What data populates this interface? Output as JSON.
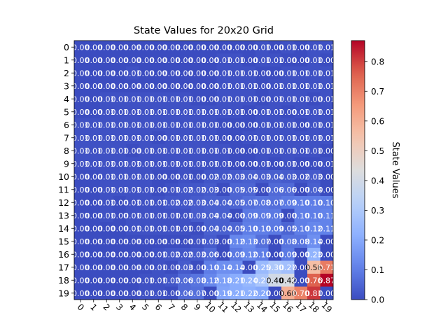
{
  "chart_data": {
    "type": "heatmap",
    "title": "State Values for 20x20 Grid",
    "xlabel": "",
    "ylabel": "",
    "x_ticks": [
      "0",
      "1",
      "2",
      "3",
      "4",
      "5",
      "6",
      "7",
      "8",
      "9",
      "10",
      "11",
      "12",
      "13",
      "14",
      "15",
      "16",
      "17",
      "18",
      "19"
    ],
    "y_ticks": [
      "0",
      "1",
      "2",
      "3",
      "4",
      "5",
      "6",
      "7",
      "8",
      "9",
      "10",
      "11",
      "12",
      "13",
      "14",
      "15",
      "16",
      "17",
      "18",
      "19"
    ],
    "colormap": "coolwarm",
    "vmin": 0.0,
    "vmax": 0.87,
    "colorbar": {
      "label": "State Values",
      "ticks": [
        "0.0",
        "0.1",
        "0.2",
        "0.3",
        "0.4",
        "0.5",
        "0.6",
        "0.7",
        "0.8"
      ]
    },
    "annotation_format": "2 decimals",
    "values": [
      [
        0.0,
        0.0,
        0.0,
        0.0,
        0.0,
        0.0,
        0.0,
        0.0,
        0.0,
        0.0,
        0.0,
        0.0,
        0.0,
        0.0,
        0.01,
        0.0,
        0.01,
        0.0,
        0.01,
        0.01
      ],
      [
        0.0,
        0.0,
        0.0,
        0.0,
        0.0,
        0.0,
        0.0,
        0.0,
        0.0,
        0.0,
        0.0,
        0.01,
        0.01,
        0.0,
        0.01,
        0.01,
        0.0,
        0.0,
        0.01,
        0.0
      ],
      [
        0.0,
        0.0,
        0.0,
        0.0,
        0.01,
        0.0,
        0.0,
        0.0,
        0.0,
        0.0,
        0.0,
        0.01,
        0.01,
        0.01,
        0.0,
        0.0,
        0.01,
        0.01,
        0.01,
        0.01
      ],
      [
        0.0,
        0.0,
        0.0,
        0.0,
        0.0,
        0.0,
        0.0,
        0.0,
        0.0,
        0.0,
        0.0,
        0.01,
        0.01,
        0.01,
        0.0,
        0.01,
        0.01,
        0.01,
        0.01,
        0.01
      ],
      [
        0.0,
        0.0,
        0.01,
        0.01,
        0.01,
        0.01,
        0.01,
        0.01,
        0.01,
        0.0,
        0.0,
        0.01,
        0.01,
        0.01,
        0.0,
        0.01,
        0.01,
        0.01,
        0.0,
        0.01
      ],
      [
        0.0,
        0.0,
        0.01,
        0.01,
        0.01,
        0.01,
        0.01,
        0.01,
        0.01,
        0.01,
        0.01,
        0.01,
        0.01,
        0.0,
        0.01,
        0.01,
        0.0,
        0.01,
        0.01,
        0.01
      ],
      [
        0.01,
        0.01,
        0.01,
        0.01,
        0.01,
        0.01,
        0.01,
        0.01,
        0.01,
        0.01,
        0.01,
        0.0,
        0.0,
        0.0,
        0.01,
        0.01,
        0.01,
        0.0,
        0.01,
        0.01
      ],
      [
        0.01,
        0.01,
        0.01,
        0.01,
        0.01,
        0.01,
        0.0,
        0.01,
        0.01,
        0.01,
        0.01,
        0.0,
        0.0,
        0.01,
        0.01,
        0.01,
        0.01,
        0.01,
        0.01,
        0.01
      ],
      [
        0.01,
        0.01,
        0.01,
        0.01,
        0.0,
        0.01,
        0.01,
        0.01,
        0.01,
        0.01,
        0.01,
        0.01,
        0.0,
        0.0,
        0.01,
        0.01,
        0.01,
        0.01,
        0.01,
        0.0
      ],
      [
        0.01,
        0.01,
        0.01,
        0.01,
        0.01,
        0.01,
        0.01,
        0.01,
        0.01,
        0.01,
        0.01,
        0.01,
        0.0,
        0.0,
        0.01,
        0.0,
        0.01,
        0.0,
        0.0,
        0.01
      ],
      [
        0.0,
        0.0,
        0.01,
        0.01,
        0.01,
        0.01,
        0.0,
        0.0,
        0.01,
        0.0,
        0.02,
        0.02,
        0.03,
        0.04,
        0.03,
        0.04,
        0.03,
        0.02,
        0.03,
        0.0
      ],
      [
        0.0,
        0.0,
        0.01,
        0.01,
        0.01,
        0.01,
        0.0,
        0.01,
        0.02,
        0.02,
        0.03,
        0.0,
        0.05,
        0.05,
        0.0,
        0.06,
        0.06,
        0.0,
        0.04,
        0.0
      ],
      [
        0.0,
        0.0,
        0.01,
        0.0,
        0.01,
        0.01,
        0.01,
        0.02,
        0.02,
        0.03,
        0.04,
        0.04,
        0.05,
        0.07,
        0.08,
        0.07,
        0.09,
        0.1,
        0.1,
        0.1
      ],
      [
        0.0,
        0.0,
        0.01,
        0.0,
        0.01,
        0.01,
        0.01,
        0.01,
        0.01,
        0.03,
        0.04,
        0.04,
        0.0,
        0.09,
        0.09,
        0.09,
        0.0,
        0.1,
        0.1,
        0.11
      ],
      [
        0.0,
        0.0,
        0.0,
        0.0,
        0.01,
        0.01,
        0.01,
        0.01,
        0.01,
        0.0,
        0.04,
        0.04,
        0.05,
        0.1,
        0.1,
        0.09,
        0.05,
        0.1,
        0.12,
        0.11
      ],
      [
        0.0,
        0.0,
        0.0,
        0.0,
        0.0,
        0.0,
        0.0,
        0.0,
        0.0,
        0.01,
        0.03,
        0.0,
        0.12,
        0.13,
        0.07,
        0.0,
        0.08,
        0.08,
        0.14,
        0.0
      ],
      [
        0.0,
        0.0,
        0.0,
        0.0,
        0.0,
        0.0,
        0.01,
        0.02,
        0.02,
        0.03,
        0.06,
        0.0,
        0.09,
        0.12,
        0.1,
        0.0,
        0.09,
        0.0,
        0.23,
        0.0
      ],
      [
        0.0,
        0.0,
        0.0,
        0.0,
        0.0,
        0.0,
        0.01,
        0.0,
        0.03,
        0.0,
        0.1,
        0.14,
        0.14,
        0.0,
        0.25,
        0.3,
        0.27,
        0.0,
        0.56,
        0.71
      ],
      [
        0.0,
        0.0,
        0.0,
        0.0,
        0.0,
        0.01,
        0.01,
        0.02,
        0.06,
        0.08,
        0.12,
        0.18,
        0.21,
        0.24,
        0.29,
        0.4,
        0.42,
        0.0,
        0.76,
        0.87
      ],
      [
        0.0,
        0.0,
        0.0,
        0.0,
        0.0,
        0.01,
        0.01,
        0.0,
        0.06,
        0.07,
        0.0,
        0.19,
        0.21,
        0.22,
        0.2,
        0.0,
        0.6,
        0.7,
        0.81,
        0.0
      ]
    ]
  }
}
